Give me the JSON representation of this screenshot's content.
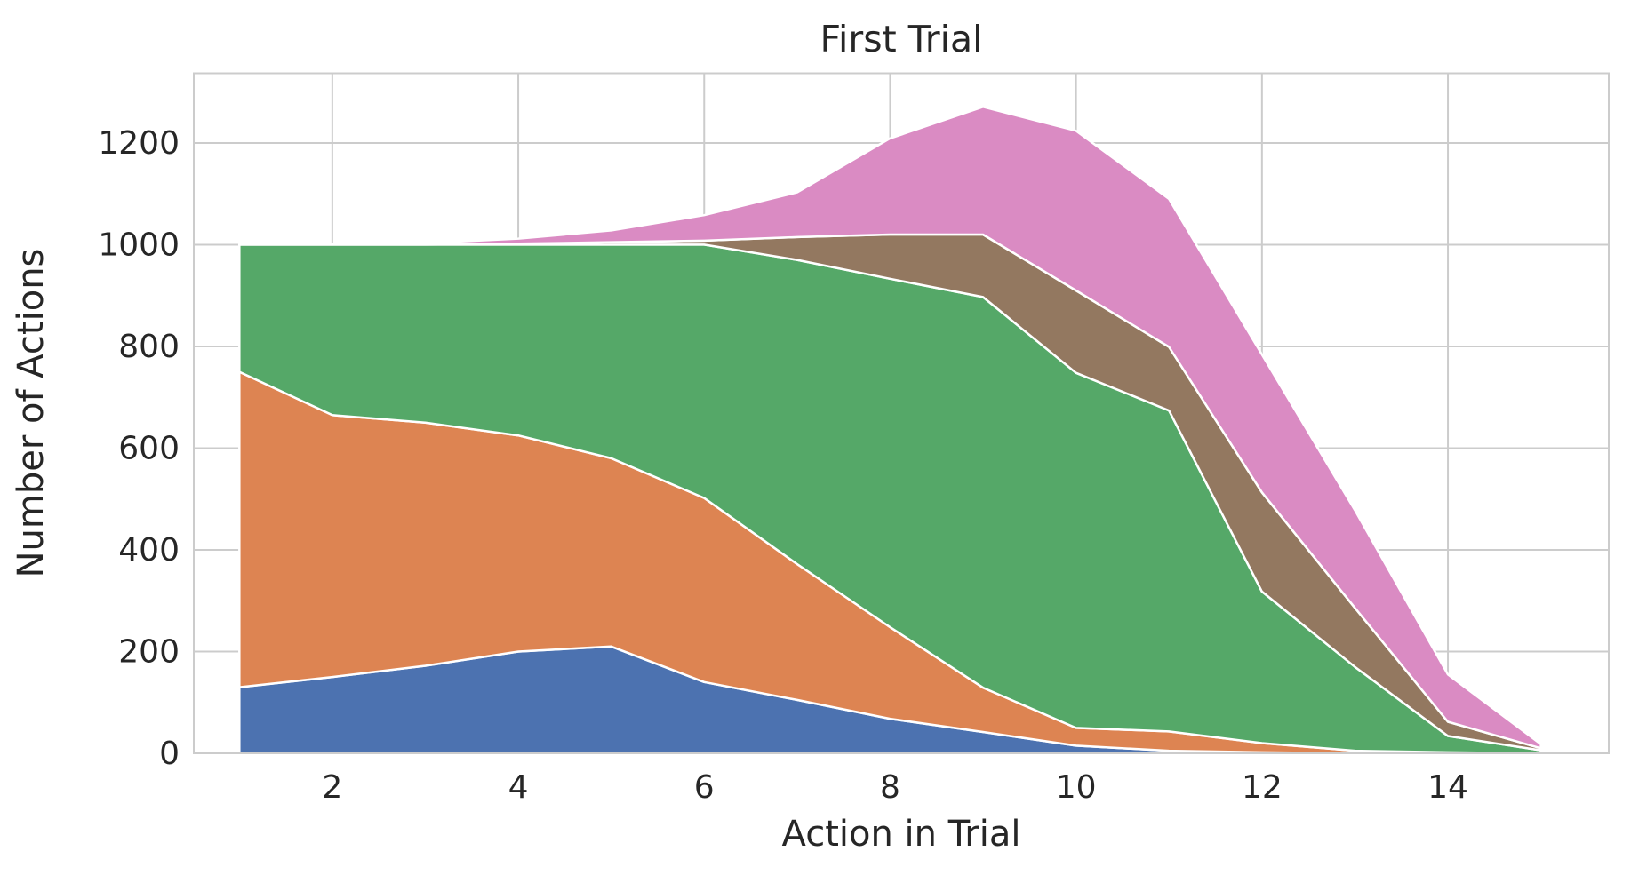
{
  "chart_data": {
    "type": "area",
    "stacked": true,
    "title": "First Trial",
    "xlabel": "Action in Trial",
    "ylabel": "Number of Actions",
    "x": [
      1,
      2,
      3,
      4,
      5,
      6,
      7,
      8,
      9,
      10,
      11,
      12,
      13,
      14,
      15
    ],
    "series": [
      {
        "name": "blue",
        "color": "#4C72B0",
        "values": [
          130,
          150,
          172,
          200,
          210,
          140,
          105,
          68,
          42,
          15,
          5,
          2,
          0,
          0,
          0
        ]
      },
      {
        "name": "orange",
        "color": "#DD8452",
        "values": [
          620,
          515,
          478,
          425,
          370,
          362,
          267,
          180,
          87,
          35,
          38,
          18,
          5,
          2,
          0
        ]
      },
      {
        "name": "green",
        "color": "#55A868",
        "values": [
          250,
          335,
          350,
          375,
          420,
          498,
          598,
          685,
          768,
          698,
          631,
          298,
          165,
          32,
          6
        ]
      },
      {
        "name": "brown",
        "color": "#937860",
        "values": [
          0,
          0,
          0,
          2,
          5,
          8,
          45,
          87,
          123,
          162,
          125,
          195,
          116,
          28,
          4
        ]
      },
      {
        "name": "pink",
        "color": "#DA8BC3",
        "values": [
          0,
          0,
          3,
          10,
          23,
          50,
          88,
          189,
          251,
          314,
          291,
          271,
          192,
          93,
          8
        ]
      }
    ],
    "xticks": [
      2,
      4,
      6,
      8,
      10,
      12,
      14
    ],
    "yticks": [
      0,
      200,
      400,
      600,
      800,
      1000,
      1200
    ],
    "xlim": [
      0.51,
      15.73
    ],
    "ylim": [
      0,
      1337
    ],
    "grid": true,
    "legend": false,
    "background": "#FFFFFF",
    "grid_color": "#CCCCCC",
    "spine_color": "#CCCCCC",
    "text_color": "#262626",
    "area_edge_color": "#FFFFFF"
  }
}
